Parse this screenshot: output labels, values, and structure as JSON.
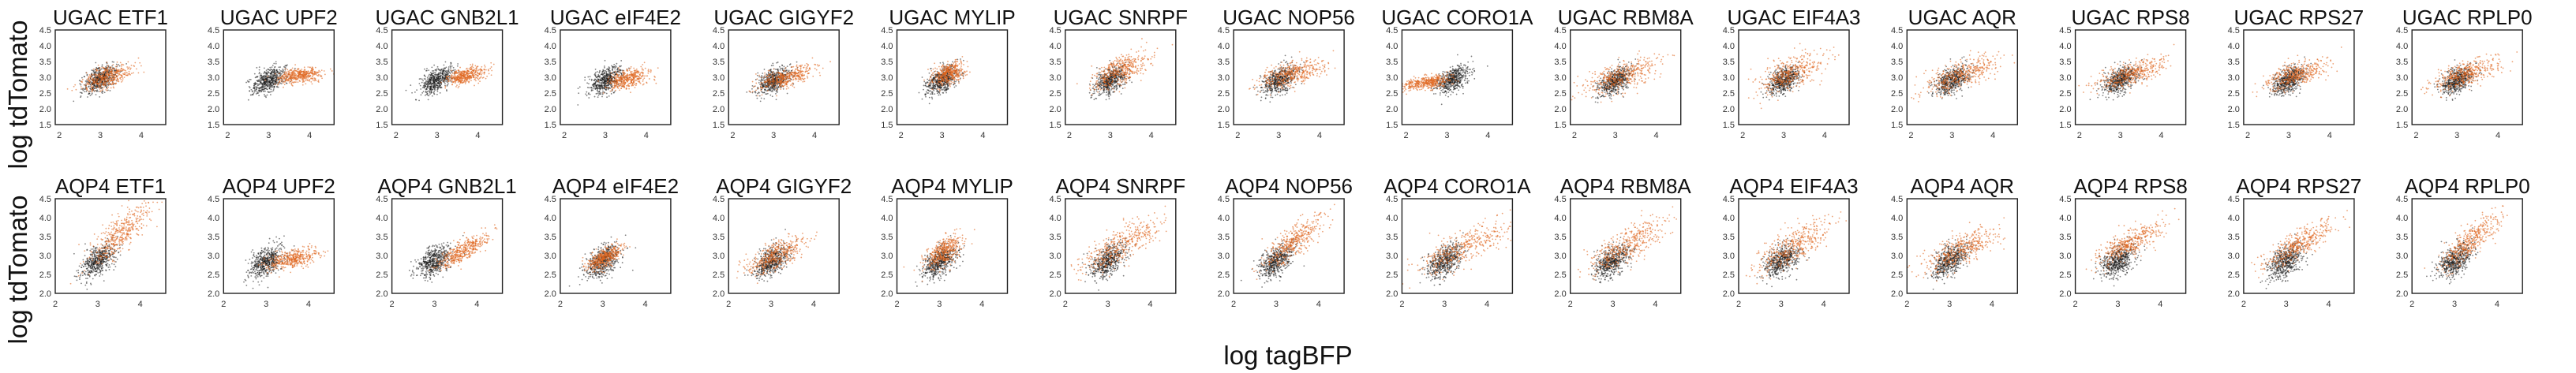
{
  "figure": {
    "ylabel": "log tdTomato",
    "xlabel": "log tagBFP"
  },
  "colors": {
    "control": "#1a1a1a",
    "perturbed": "#e0661e"
  },
  "chart_data": [
    {
      "type": "scatter",
      "row": "UGAC",
      "ylim": [
        1.5,
        4.5
      ],
      "yticks": [
        "1.5",
        "2.0",
        "2.5",
        "3.0",
        "3.5",
        "4.0",
        "4.5"
      ],
      "xlim": [
        1.9,
        4.6
      ],
      "xticks": [
        "2",
        "3",
        "4"
      ],
      "panels": [
        {
          "title": "UGAC ETF1",
          "control_center": [
            3.0,
            2.95
          ],
          "perturbed_center": [
            3.15,
            3.0
          ],
          "perturbed_spread": [
            0.32,
            0.28
          ],
          "tilt": 0.4
        },
        {
          "title": "UGAC UPF2",
          "control_center": [
            3.0,
            2.9
          ],
          "perturbed_center": [
            3.75,
            3.05
          ],
          "perturbed_spread": [
            0.28,
            0.18
          ],
          "tilt": 0.15
        },
        {
          "title": "UGAC GNB2L1",
          "control_center": [
            3.0,
            2.9
          ],
          "perturbed_center": [
            3.7,
            3.05
          ],
          "perturbed_spread": [
            0.25,
            0.2
          ],
          "tilt": 0.3
        },
        {
          "title": "UGAC eIF4E2",
          "control_center": [
            3.0,
            2.9
          ],
          "perturbed_center": [
            3.55,
            2.95
          ],
          "perturbed_spread": [
            0.24,
            0.25
          ],
          "tilt": 0.3
        },
        {
          "title": "UGAC GIGYF2",
          "control_center": [
            3.0,
            2.9
          ],
          "perturbed_center": [
            3.3,
            3.0
          ],
          "perturbed_spread": [
            0.35,
            0.25
          ],
          "tilt": 0.3
        },
        {
          "title": "UGAC MYLIP",
          "control_center": [
            3.0,
            2.9
          ],
          "perturbed_center": [
            3.15,
            3.1
          ],
          "perturbed_spread": [
            0.2,
            0.28
          ],
          "tilt": 0.4
        },
        {
          "title": "UGAC SNRPF",
          "control_center": [
            3.0,
            2.9
          ],
          "perturbed_center": [
            3.25,
            3.2
          ],
          "perturbed_spread": [
            0.35,
            0.38
          ],
          "tilt": 0.5
        },
        {
          "title": "UGAC NOP56",
          "control_center": [
            3.0,
            2.9
          ],
          "perturbed_center": [
            3.3,
            3.1
          ],
          "perturbed_spread": [
            0.4,
            0.3
          ],
          "tilt": 0.3
        },
        {
          "title": "UGAC CORO1A",
          "control_center": [
            3.15,
            2.95
          ],
          "perturbed_center": [
            2.55,
            2.85
          ],
          "perturbed_spread": [
            0.3,
            0.18
          ],
          "tilt": 0.2
        },
        {
          "title": "UGAC RBM8A",
          "control_center": [
            3.0,
            2.9
          ],
          "perturbed_center": [
            3.15,
            3.05
          ],
          "perturbed_spread": [
            0.45,
            0.4
          ],
          "tilt": 0.4
        },
        {
          "title": "UGAC EIF4A3",
          "control_center": [
            3.0,
            2.9
          ],
          "perturbed_center": [
            3.2,
            3.15
          ],
          "perturbed_spread": [
            0.4,
            0.42
          ],
          "tilt": 0.5
        },
        {
          "title": "UGAC AQR",
          "control_center": [
            3.0,
            2.9
          ],
          "perturbed_center": [
            3.25,
            3.1
          ],
          "perturbed_spread": [
            0.45,
            0.35
          ],
          "tilt": 0.4
        },
        {
          "title": "UGAC RPS8",
          "control_center": [
            3.0,
            2.9
          ],
          "perturbed_center": [
            3.25,
            3.1
          ],
          "perturbed_spread": [
            0.4,
            0.3
          ],
          "tilt": 0.4
        },
        {
          "title": "UGAC RPS27",
          "control_center": [
            3.0,
            2.9
          ],
          "perturbed_center": [
            3.2,
            3.1
          ],
          "perturbed_spread": [
            0.4,
            0.32
          ],
          "tilt": 0.4
        },
        {
          "title": "UGAC RPLP0",
          "control_center": [
            3.0,
            2.9
          ],
          "perturbed_center": [
            3.2,
            3.1
          ],
          "perturbed_spread": [
            0.4,
            0.32
          ],
          "tilt": 0.4
        }
      ]
    },
    {
      "type": "scatter",
      "row": "AQP4",
      "ylim": [
        2.0,
        4.5
      ],
      "yticks": [
        "2.0",
        "2.5",
        "3.0",
        "3.5",
        "4.0",
        "4.5"
      ],
      "xlim": [
        2.0,
        4.6
      ],
      "xticks": [
        "2",
        "3",
        "4"
      ],
      "panels": [
        {
          "title": "AQP4 ETF1",
          "control_center": [
            3.0,
            2.85
          ],
          "perturbed_center": [
            3.5,
            3.55
          ],
          "perturbed_spread": [
            0.35,
            0.38
          ],
          "tilt": 0.9
        },
        {
          "title": "AQP4 UPF2",
          "control_center": [
            3.0,
            2.85
          ],
          "perturbed_center": [
            3.6,
            2.9
          ],
          "perturbed_spread": [
            0.3,
            0.2
          ],
          "tilt": 0.2
        },
        {
          "title": "AQP4 GNB2L1",
          "control_center": [
            3.0,
            2.85
          ],
          "perturbed_center": [
            3.65,
            3.1
          ],
          "perturbed_spread": [
            0.28,
            0.22
          ],
          "tilt": 0.6
        },
        {
          "title": "AQP4 eIF4E2",
          "control_center": [
            3.0,
            2.85
          ],
          "perturbed_center": [
            3.05,
            2.95
          ],
          "perturbed_spread": [
            0.2,
            0.2
          ],
          "tilt": 0.5
        },
        {
          "title": "AQP4 GIGYF2",
          "control_center": [
            3.0,
            2.85
          ],
          "perturbed_center": [
            3.1,
            3.0
          ],
          "perturbed_spread": [
            0.35,
            0.3
          ],
          "tilt": 0.5
        },
        {
          "title": "AQP4 MYLIP",
          "control_center": [
            3.0,
            2.85
          ],
          "perturbed_center": [
            3.1,
            3.1
          ],
          "perturbed_spread": [
            0.22,
            0.28
          ],
          "tilt": 0.6
        },
        {
          "title": "AQP4 SNRPF",
          "control_center": [
            3.0,
            2.85
          ],
          "perturbed_center": [
            3.3,
            3.25
          ],
          "perturbed_spread": [
            0.45,
            0.38
          ],
          "tilt": 0.6
        },
        {
          "title": "AQP4 NOP56",
          "control_center": [
            3.0,
            2.85
          ],
          "perturbed_center": [
            3.4,
            3.35
          ],
          "perturbed_spread": [
            0.35,
            0.35
          ],
          "tilt": 0.8
        },
        {
          "title": "AQP4 CORO1A",
          "control_center": [
            3.0,
            2.85
          ],
          "perturbed_center": [
            3.4,
            3.2
          ],
          "perturbed_spread": [
            0.55,
            0.35
          ],
          "tilt": 0.5
        },
        {
          "title": "AQP4 RBM8A",
          "control_center": [
            3.0,
            2.85
          ],
          "perturbed_center": [
            3.3,
            3.25
          ],
          "perturbed_spread": [
            0.45,
            0.38
          ],
          "tilt": 0.6
        },
        {
          "title": "AQP4 EIF4A3",
          "control_center": [
            3.0,
            2.85
          ],
          "perturbed_center": [
            3.3,
            3.25
          ],
          "perturbed_spread": [
            0.45,
            0.38
          ],
          "tilt": 0.6
        },
        {
          "title": "AQP4 AQR",
          "control_center": [
            3.0,
            2.85
          ],
          "perturbed_center": [
            3.25,
            3.15
          ],
          "perturbed_spread": [
            0.45,
            0.35
          ],
          "tilt": 0.5
        },
        {
          "title": "AQP4 RPS8",
          "control_center": [
            3.0,
            2.85
          ],
          "perturbed_center": [
            3.25,
            3.3
          ],
          "perturbed_spread": [
            0.38,
            0.3
          ],
          "tilt": 0.6
        },
        {
          "title": "AQP4 RPS27",
          "control_center": [
            3.0,
            2.85
          ],
          "perturbed_center": [
            3.3,
            3.3
          ],
          "perturbed_spread": [
            0.4,
            0.32
          ],
          "tilt": 0.6
        },
        {
          "title": "AQP4 RPLP0",
          "control_center": [
            3.0,
            2.85
          ],
          "perturbed_center": [
            3.35,
            3.35
          ],
          "perturbed_spread": [
            0.35,
            0.35
          ],
          "tilt": 0.9
        }
      ]
    }
  ]
}
